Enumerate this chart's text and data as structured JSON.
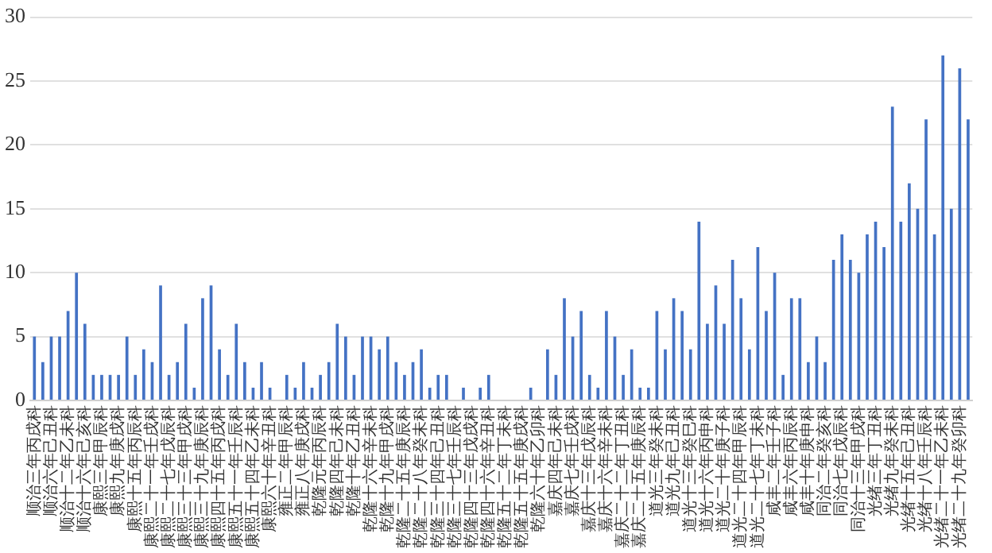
{
  "chart_data": {
    "type": "bar",
    "categories": [
      "顺治三年丙戌科",
      null,
      "顺治六年己丑科",
      null,
      "顺治十二年乙未科",
      null,
      "顺治十六年己亥科",
      null,
      "康熙三年甲辰科",
      null,
      "康熙九年庚戌科",
      null,
      "康熙十五年丙辰科",
      null,
      "康熙二十一年壬戌科",
      null,
      "康熙二十七年戊辰科",
      null,
      "康熙三十三年甲戌科",
      null,
      "康熙三十九年庚辰科",
      null,
      "康熙四十五年丙戌科",
      null,
      "康熙五十一年壬辰科",
      null,
      "康熙五十四年乙未科",
      null,
      "康熙六十年辛丑科",
      null,
      "雍正二年甲辰科",
      null,
      "雍正八年庚戌科",
      null,
      "乾隆元年丙辰科",
      null,
      "乾隆四年己未科",
      null,
      "乾隆十年乙丑科",
      null,
      "乾隆十六年辛未科",
      null,
      "乾隆十九年甲戌科",
      null,
      "乾隆二十五年庚辰科",
      null,
      "乾隆二十八年癸未科",
      null,
      "乾隆三十四年己丑科",
      null,
      "乾隆三十七年壬辰科",
      null,
      "乾隆四十三年戊戌科",
      null,
      "乾隆四十六年辛丑科",
      null,
      "乾隆五十二年丁未科",
      null,
      "乾隆五十五年庚戌科",
      null,
      "乾隆六十年乙卯科",
      null,
      "嘉庆四年己未科",
      null,
      "嘉庆七年壬戌科",
      null,
      "嘉庆十三年戊辰科",
      null,
      "嘉庆十六年辛未科",
      null,
      "嘉庆二十二年丁丑科",
      null,
      "嘉庆二十五年庚辰科",
      null,
      "道光三年癸未科",
      null,
      "道光九年己丑科",
      null,
      "道光十三年癸巳科",
      null,
      "道光十六年丙申科",
      null,
      "道光二十年庚子科",
      null,
      "道光二十四年甲辰科",
      null,
      "道光二十七年丁未科",
      null,
      "咸丰二年壬子科",
      null,
      "咸丰六年丙辰科",
      null,
      "咸丰十年庚申科",
      null,
      "同治二年癸亥科",
      null,
      "同治七年戊辰科",
      null,
      "同治十三年甲戌科",
      null,
      "光绪三年丁丑科",
      null,
      "光绪九年癸未科",
      null,
      "光绪十五年己丑科",
      null,
      "光绪十八年壬辰科",
      null,
      "光绪二十一年乙未科",
      null,
      "光绪二十九年癸卯科",
      null
    ],
    "values": [
      5,
      3,
      5,
      5,
      7,
      10,
      6,
      2,
      2,
      2,
      2,
      5,
      2,
      4,
      3,
      9,
      2,
      3,
      6,
      1,
      8,
      9,
      4,
      2,
      6,
      3,
      1,
      3,
      1,
      0,
      2,
      1,
      3,
      1,
      2,
      3,
      6,
      5,
      2,
      5,
      5,
      4,
      5,
      3,
      2,
      3,
      4,
      1,
      2,
      2,
      0,
      1,
      0,
      1,
      2,
      0,
      0,
      0,
      0,
      1,
      0,
      4,
      2,
      8,
      5,
      7,
      2,
      1,
      7,
      5,
      2,
      4,
      1,
      1,
      7,
      4,
      8,
      7,
      4,
      14,
      6,
      9,
      6,
      11,
      8,
      4,
      12,
      7,
      10,
      2,
      8,
      8,
      3,
      5,
      3,
      11,
      13,
      11,
      10,
      13,
      14,
      12,
      23,
      14,
      17,
      15,
      22,
      13,
      27,
      15,
      26,
      22
    ],
    "color": "#4472c4",
    "ylim": [
      0,
      30
    ],
    "yticks": [
      0,
      5,
      10,
      15,
      20,
      25,
      30
    ],
    "grid": "y",
    "legend": false
  }
}
